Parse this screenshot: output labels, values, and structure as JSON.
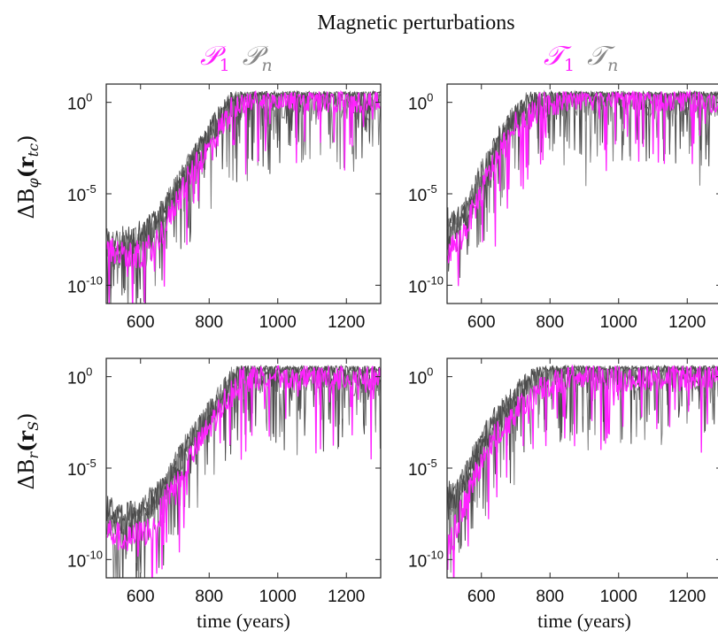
{
  "title": "Magnetic perturbations",
  "legends": [
    {
      "items": [
        {
          "text": "𝒫",
          "sub": "1",
          "color": "#ff22ff"
        },
        {
          "text": "𝒫",
          "sub": "n",
          "color": "#888888"
        }
      ]
    },
    {
      "items": [
        {
          "text": "𝒯",
          "sub": "1",
          "color": "#ff22ff"
        },
        {
          "text": "𝒯",
          "sub": "n",
          "color": "#888888"
        }
      ]
    }
  ],
  "row_labels": [
    {
      "main": "ΔB",
      "sub1": "φ",
      "paren": "(r",
      "sub2": "tc",
      "close": ")"
    },
    {
      "main": "ΔB",
      "sub1": "r",
      "paren": "(r",
      "sub2": "S",
      "close": ")"
    }
  ],
  "colors": {
    "first_series": "#ff22ff",
    "other_series": "#7f7f7f",
    "other_series_dark": "#4a4a4a"
  },
  "chart_data": [
    {
      "type": "line",
      "row": 0,
      "col": 0,
      "xlim": [
        500,
        1300
      ],
      "ylim_log10": [
        -11,
        1
      ],
      "y_scale": "log",
      "xticks": [
        "600",
        "800",
        "1000",
        "1200"
      ],
      "yticks": [
        {
          "base": "10",
          "exp": "0"
        },
        {
          "base": "10",
          "exp": "-5"
        },
        {
          "base": "10",
          "exp": "-10"
        }
      ],
      "xlabel": "",
      "series": [
        {
          "color_role": "first",
          "x": [
            510,
            560,
            600,
            640,
            680,
            720,
            760,
            800,
            840,
            880,
            920,
            960,
            1000,
            1100,
            1200,
            1300
          ],
          "log10_y": [
            -8,
            -8.5,
            -8.3,
            -7.8,
            -6.5,
            -4.8,
            -3.6,
            -2.5,
            -1.2,
            0.0,
            0.3,
            0.4,
            0.4,
            0.3,
            0.2,
            0.2
          ]
        },
        {
          "color_role": "other",
          "x": [
            510,
            560,
            600,
            640,
            680,
            720,
            760,
            800,
            840,
            880,
            920,
            960,
            1000,
            1100,
            1200,
            1300
          ],
          "log10_y": [
            -8,
            -8,
            -7.5,
            -6.8,
            -5.5,
            -4.2,
            -3.0,
            -1.8,
            -0.8,
            0.3,
            0.5,
            0.5,
            0.5,
            0.4,
            0.4,
            0.3
          ]
        }
      ]
    },
    {
      "type": "line",
      "row": 0,
      "col": 1,
      "xlim": [
        500,
        1300
      ],
      "ylim_log10": [
        -11,
        1
      ],
      "y_scale": "log",
      "xticks": [
        "600",
        "800",
        "1000",
        "1200"
      ],
      "yticks": [
        {
          "base": "10",
          "exp": "0"
        },
        {
          "base": "10",
          "exp": "-5"
        },
        {
          "base": "10",
          "exp": "-10"
        }
      ],
      "xlabel": "",
      "series": [
        {
          "color_role": "first",
          "x": [
            510,
            540,
            580,
            620,
            660,
            700,
            750,
            800,
            850,
            900,
            1000,
            1100,
            1200,
            1300
          ],
          "log10_y": [
            -8,
            -7.5,
            -5.8,
            -4.0,
            -2.5,
            -1.3,
            -0.5,
            0.0,
            0.2,
            0.3,
            0.4,
            0.3,
            0.3,
            0.2
          ]
        },
        {
          "color_role": "other",
          "x": [
            510,
            540,
            580,
            620,
            660,
            700,
            750,
            800,
            850,
            900,
            1000,
            1100,
            1200,
            1300
          ],
          "log10_y": [
            -7,
            -6.5,
            -5.0,
            -3.3,
            -1.8,
            -0.7,
            0.0,
            0.4,
            0.5,
            0.6,
            0.6,
            0.5,
            0.5,
            0.4
          ]
        }
      ]
    },
    {
      "type": "line",
      "row": 1,
      "col": 0,
      "xlim": [
        500,
        1300
      ],
      "ylim_log10": [
        -11,
        1
      ],
      "y_scale": "log",
      "xticks": [
        "600",
        "800",
        "1000",
        "1200"
      ],
      "yticks": [
        {
          "base": "10",
          "exp": "0"
        },
        {
          "base": "10",
          "exp": "-5"
        },
        {
          "base": "10",
          "exp": "-10"
        }
      ],
      "xlabel": "time (years)",
      "series": [
        {
          "color_role": "first",
          "x": [
            510,
            560,
            600,
            640,
            680,
            720,
            760,
            800,
            840,
            880,
            920,
            960,
            1000,
            1100,
            1200,
            1300
          ],
          "log10_y": [
            -8.5,
            -9,
            -8.6,
            -8.2,
            -6.5,
            -5.2,
            -4.0,
            -2.8,
            -1.5,
            -0.3,
            0.0,
            0.1,
            0.1,
            0.0,
            0.0,
            0.0
          ]
        },
        {
          "color_role": "other",
          "x": [
            510,
            560,
            600,
            640,
            680,
            720,
            760,
            800,
            840,
            880,
            920,
            960,
            1000,
            1100,
            1200,
            1300
          ],
          "log10_y": [
            -7.8,
            -8,
            -7.5,
            -6.8,
            -5.8,
            -4.2,
            -3.2,
            -2.0,
            -1.0,
            0.2,
            0.4,
            0.4,
            0.4,
            0.3,
            0.3,
            0.2
          ]
        }
      ]
    },
    {
      "type": "line",
      "row": 1,
      "col": 1,
      "xlim": [
        500,
        1300
      ],
      "ylim_log10": [
        -11,
        1
      ],
      "y_scale": "log",
      "xticks": [
        "600",
        "800",
        "1000",
        "1200"
      ],
      "yticks": [
        {
          "base": "10",
          "exp": "0"
        },
        {
          "base": "10",
          "exp": "-5"
        },
        {
          "base": "10",
          "exp": "-10"
        }
      ],
      "xlabel": "time (years)",
      "series": [
        {
          "color_role": "first",
          "x": [
            510,
            540,
            580,
            620,
            660,
            700,
            750,
            800,
            850,
            900,
            1000,
            1100,
            1200,
            1300
          ],
          "log10_y": [
            -9,
            -7.5,
            -5.5,
            -3.8,
            -2.8,
            -2.0,
            -1.0,
            -0.5,
            -0.2,
            0.0,
            0.0,
            0.0,
            0.0,
            0.0
          ]
        },
        {
          "color_role": "other",
          "x": [
            510,
            540,
            580,
            620,
            660,
            700,
            750,
            800,
            850,
            900,
            1000,
            1100,
            1200,
            1300
          ],
          "log10_y": [
            -7,
            -6,
            -4.5,
            -3.0,
            -2.0,
            -1.2,
            -0.3,
            0.2,
            0.4,
            0.5,
            0.5,
            0.5,
            0.5,
            0.4
          ]
        }
      ]
    }
  ]
}
